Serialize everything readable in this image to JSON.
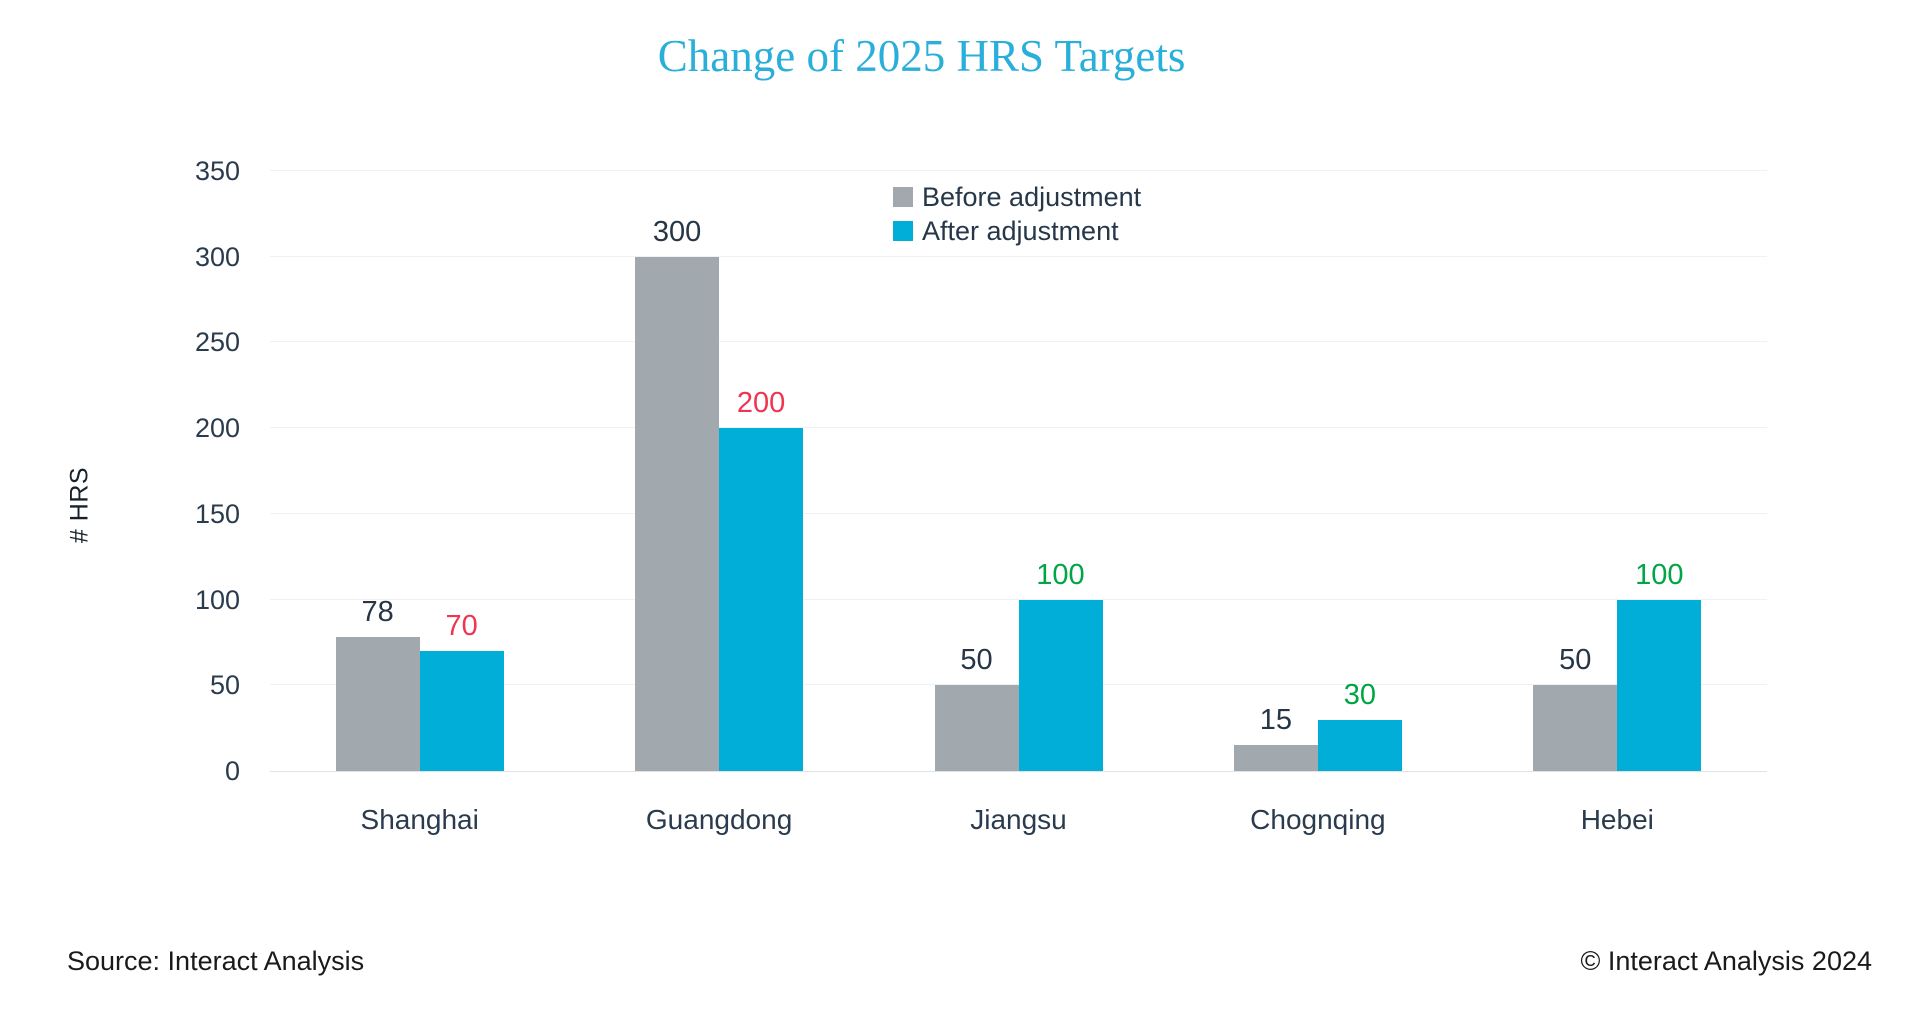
{
  "footer": {
    "source": "Source: Interact Analysis",
    "copyright": "© Interact Analysis 2024"
  },
  "colors": {
    "title": "#29afd9",
    "axis_text": "#2b3b4e",
    "y_axis_title_text": "#16212c",
    "legend_text": "#263749",
    "before_bar": "#a1a9af",
    "after_bar": "#00aed8",
    "before_label": "#263646",
    "decrease_label": "#ef3552",
    "increase_label": "#00a546",
    "gridline": "#eff1f2",
    "axis_line": "#dfe3e5"
  },
  "chart_data": {
    "type": "bar",
    "title": "Change of 2025 HRS Targets",
    "xlabel": "",
    "ylabel": "# HRS",
    "ylim": [
      0,
      350
    ],
    "ytick_step": 50,
    "grid": true,
    "legend_position": "top-center-inside",
    "categories": [
      "Shanghai",
      "Guangdong",
      "Jiangsu",
      "Chognqing",
      "Hebei"
    ],
    "series": [
      {
        "name": "Before adjustment",
        "color": "#a1a9af",
        "values": [
          78,
          300,
          50,
          15,
          50
        ],
        "label_colors": [
          "#263646",
          "#263646",
          "#263646",
          "#263646",
          "#263646"
        ]
      },
      {
        "name": "After adjustment",
        "color": "#00aed8",
        "values": [
          70,
          200,
          100,
          30,
          100
        ],
        "label_colors": [
          "#ef3552",
          "#ef3552",
          "#00a546",
          "#00a546",
          "#00a546"
        ]
      }
    ]
  }
}
